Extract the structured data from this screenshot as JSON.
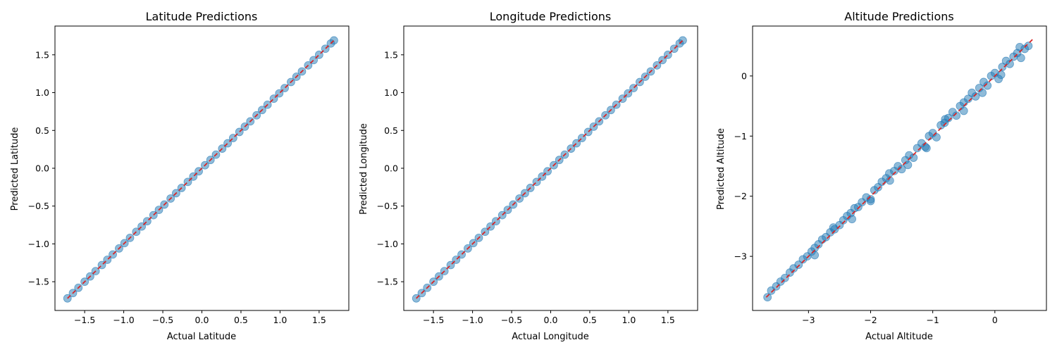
{
  "figure": {
    "background": "#ffffff"
  },
  "style": {
    "point_color": "#1f77b4",
    "point_opacity": 0.5,
    "diagonal_color": "#d62728"
  },
  "chart_data": [
    {
      "type": "scatter",
      "title": "Latitude Predictions",
      "xlabel": "Actual Latitude",
      "ylabel": "Predicted Latitude",
      "xlim": [
        -1.88,
        1.88
      ],
      "ylim": [
        -1.88,
        1.88
      ],
      "xticks": [
        -1.5,
        -1.0,
        -0.5,
        0.0,
        0.5,
        1.0,
        1.5
      ],
      "yticks": [
        -1.5,
        -1.0,
        -0.5,
        0.0,
        0.5,
        1.0,
        1.5
      ],
      "tick_labels_x": [
        "−1.5",
        "−1.0",
        "−0.5",
        "0.0",
        "0.5",
        "1.0",
        "1.5"
      ],
      "tick_labels_y": [
        "−1.5",
        "−1.0",
        "−0.5",
        "0.0",
        "0.5",
        "1.0",
        "1.5"
      ],
      "reference_line": {
        "from": [
          -1.72,
          -1.72
        ],
        "to": [
          1.69,
          1.69
        ],
        "style": "dashed"
      },
      "grid": false,
      "series": [
        {
          "x": [
            -1.72,
            -1.65,
            -1.58,
            -1.5,
            -1.43,
            -1.36,
            -1.28,
            -1.21,
            -1.14,
            -1.06,
            -0.99,
            -0.92,
            -0.84,
            -0.77,
            -0.7,
            -0.62,
            -0.55,
            -0.48,
            -0.4,
            -0.33,
            -0.26,
            -0.18,
            -0.11,
            -0.04,
            0.04,
            0.11,
            0.18,
            0.26,
            0.33,
            0.4,
            0.48,
            0.55,
            0.62,
            0.7,
            0.77,
            0.84,
            0.92,
            0.99,
            1.06,
            1.14,
            1.21,
            1.28,
            1.36,
            1.43,
            1.5,
            1.58,
            1.65,
            1.69
          ],
          "y": [
            -1.72,
            -1.65,
            -1.58,
            -1.5,
            -1.43,
            -1.36,
            -1.28,
            -1.21,
            -1.14,
            -1.06,
            -0.99,
            -0.92,
            -0.84,
            -0.77,
            -0.7,
            -0.62,
            -0.55,
            -0.48,
            -0.4,
            -0.33,
            -0.26,
            -0.18,
            -0.11,
            -0.04,
            0.04,
            0.11,
            0.18,
            0.26,
            0.33,
            0.4,
            0.48,
            0.55,
            0.62,
            0.7,
            0.77,
            0.84,
            0.92,
            0.99,
            1.06,
            1.14,
            1.21,
            1.28,
            1.36,
            1.43,
            1.5,
            1.58,
            1.65,
            1.69
          ]
        }
      ]
    },
    {
      "type": "scatter",
      "title": "Longitude Predictions",
      "xlabel": "Actual Longitude",
      "ylabel": "Predicted Longitude",
      "xlim": [
        -1.88,
        1.88
      ],
      "ylim": [
        -1.88,
        1.88
      ],
      "xticks": [
        -1.5,
        -1.0,
        -0.5,
        0.0,
        0.5,
        1.0,
        1.5
      ],
      "yticks": [
        -1.5,
        -1.0,
        -0.5,
        0.0,
        0.5,
        1.0,
        1.5
      ],
      "tick_labels_x": [
        "−1.5",
        "−1.0",
        "−0.5",
        "0.0",
        "0.5",
        "1.0",
        "1.5"
      ],
      "tick_labels_y": [
        "−1.5",
        "−1.0",
        "−0.5",
        "0.0",
        "0.5",
        "1.0",
        "1.5"
      ],
      "reference_line": {
        "from": [
          -1.72,
          -1.72
        ],
        "to": [
          1.69,
          1.69
        ],
        "style": "dashed"
      },
      "grid": false,
      "series": [
        {
          "x": [
            -1.72,
            -1.65,
            -1.58,
            -1.5,
            -1.43,
            -1.36,
            -1.28,
            -1.21,
            -1.14,
            -1.06,
            -0.99,
            -0.92,
            -0.84,
            -0.77,
            -0.7,
            -0.62,
            -0.55,
            -0.48,
            -0.4,
            -0.33,
            -0.26,
            -0.18,
            -0.11,
            -0.04,
            0.04,
            0.11,
            0.18,
            0.26,
            0.33,
            0.4,
            0.48,
            0.55,
            0.62,
            0.7,
            0.77,
            0.84,
            0.92,
            0.99,
            1.06,
            1.14,
            1.21,
            1.28,
            1.36,
            1.43,
            1.5,
            1.58,
            1.65,
            1.69
          ],
          "y": [
            -1.72,
            -1.65,
            -1.58,
            -1.5,
            -1.43,
            -1.36,
            -1.28,
            -1.21,
            -1.14,
            -1.06,
            -0.99,
            -0.92,
            -0.84,
            -0.77,
            -0.7,
            -0.62,
            -0.55,
            -0.48,
            -0.4,
            -0.33,
            -0.26,
            -0.18,
            -0.11,
            -0.04,
            0.04,
            0.11,
            0.18,
            0.26,
            0.33,
            0.4,
            0.48,
            0.55,
            0.62,
            0.7,
            0.77,
            0.84,
            0.92,
            0.99,
            1.06,
            1.14,
            1.21,
            1.28,
            1.36,
            1.43,
            1.5,
            1.58,
            1.65,
            1.69
          ]
        }
      ]
    },
    {
      "type": "scatter",
      "title": "Altitude Predictions",
      "xlabel": "Actual Altitude",
      "ylabel": "Predicted Altitude",
      "xlim": [
        -3.9,
        0.83
      ],
      "ylim": [
        -3.9,
        0.83
      ],
      "xticks": [
        -3,
        -2,
        -1,
        0
      ],
      "yticks": [
        -3,
        -2,
        -1,
        0
      ],
      "tick_labels_x": [
        "−3",
        "−2",
        "−1",
        "0"
      ],
      "tick_labels_y": [
        "−3",
        "−2",
        "−1",
        "0"
      ],
      "reference_line": {
        "from": [
          -3.68,
          -3.68
        ],
        "to": [
          0.62,
          0.62
        ],
        "style": "dashed"
      },
      "grid": false,
      "series": [
        {
          "x": [
            -3.66,
            -3.6,
            -3.52,
            -3.45,
            -3.38,
            -3.3,
            -3.24,
            -3.16,
            -3.09,
            -3.02,
            -2.95,
            -2.9,
            -2.84,
            -2.78,
            -2.72,
            -2.65,
            -2.58,
            -2.5,
            -2.44,
            -2.38,
            -2.32,
            -2.26,
            -2.2,
            -2.14,
            -2.07,
            -2.0,
            -1.94,
            -1.88,
            -1.82,
            -1.75,
            -1.69,
            -1.62,
            -1.56,
            -1.5,
            -1.44,
            -1.38,
            -1.31,
            -1.25,
            -1.18,
            -1.12,
            -1.06,
            -1.0,
            -0.94,
            -0.87,
            -0.81,
            -0.75,
            -0.68,
            -0.62,
            -0.56,
            -0.5,
            -0.43,
            -0.37,
            -0.31,
            -0.25,
            -0.18,
            -0.12,
            -0.06,
            0.0,
            0.06,
            0.12,
            0.18,
            0.24,
            0.3,
            0.36,
            0.42,
            0.48,
            0.54,
            -2.9,
            -2.3,
            -1.7,
            -1.1,
            -0.5,
            0.1,
            -2.6,
            -2.0,
            -1.4,
            -0.8,
            -0.2,
            0.4
          ],
          "y": [
            -3.68,
            -3.57,
            -3.5,
            -3.42,
            -3.36,
            -3.27,
            -3.2,
            -3.14,
            -3.05,
            -3.0,
            -2.92,
            -2.86,
            -2.8,
            -2.72,
            -2.68,
            -2.6,
            -2.55,
            -2.48,
            -2.4,
            -2.33,
            -2.28,
            -2.2,
            -2.18,
            -2.1,
            -2.02,
            -2.05,
            -1.9,
            -1.85,
            -1.76,
            -1.7,
            -1.74,
            -1.58,
            -1.5,
            -1.55,
            -1.4,
            -1.32,
            -1.36,
            -1.2,
            -1.12,
            -1.18,
            -1.0,
            -0.95,
            -1.02,
            -0.82,
            -0.78,
            -0.7,
            -0.6,
            -0.66,
            -0.5,
            -0.44,
            -0.38,
            -0.28,
            -0.34,
            -0.2,
            -0.1,
            -0.16,
            0.0,
            0.05,
            -0.05,
            0.15,
            0.25,
            0.2,
            0.32,
            0.38,
            0.3,
            0.45,
            0.5,
            -2.98,
            -2.38,
            -1.62,
            -1.2,
            -0.58,
            0.02,
            -2.52,
            -2.08,
            -1.48,
            -0.72,
            -0.28,
            0.48
          ]
        }
      ]
    }
  ]
}
